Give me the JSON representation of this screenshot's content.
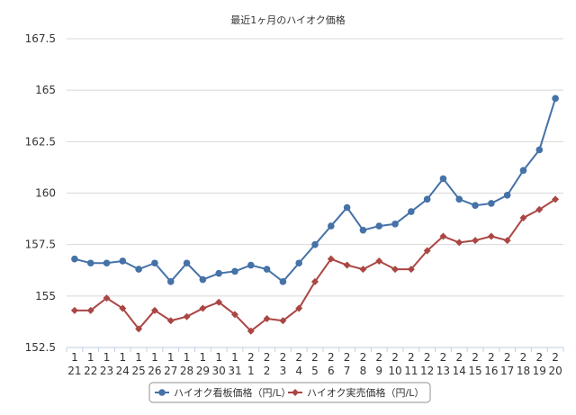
{
  "chart_data": {
    "type": "line",
    "title": "最近1ヶ月のハイオク価格",
    "xlabel": "",
    "ylabel": "",
    "ylim": [
      152.5,
      167.5
    ],
    "yticks": [
      "152.5",
      "155",
      "157.5",
      "160",
      "162.5",
      "165",
      "167.5"
    ],
    "grid": true,
    "legend_position": "bottom",
    "categories": [
      {
        "month": "1",
        "day": "21"
      },
      {
        "month": "1",
        "day": "22"
      },
      {
        "month": "1",
        "day": "23"
      },
      {
        "month": "1",
        "day": "24"
      },
      {
        "month": "1",
        "day": "25"
      },
      {
        "month": "1",
        "day": "26"
      },
      {
        "month": "1",
        "day": "27"
      },
      {
        "month": "1",
        "day": "28"
      },
      {
        "month": "1",
        "day": "29"
      },
      {
        "month": "1",
        "day": "30"
      },
      {
        "month": "1",
        "day": "31"
      },
      {
        "month": "2",
        "day": "1"
      },
      {
        "month": "2",
        "day": "2"
      },
      {
        "month": "2",
        "day": "3"
      },
      {
        "month": "2",
        "day": "4"
      },
      {
        "month": "2",
        "day": "5"
      },
      {
        "month": "2",
        "day": "6"
      },
      {
        "month": "2",
        "day": "7"
      },
      {
        "month": "2",
        "day": "8"
      },
      {
        "month": "2",
        "day": "9"
      },
      {
        "month": "2",
        "day": "10"
      },
      {
        "month": "2",
        "day": "11"
      },
      {
        "month": "2",
        "day": "12"
      },
      {
        "month": "2",
        "day": "13"
      },
      {
        "month": "2",
        "day": "14"
      },
      {
        "month": "2",
        "day": "15"
      },
      {
        "month": "2",
        "day": "16"
      },
      {
        "month": "2",
        "day": "17"
      },
      {
        "month": "2",
        "day": "18"
      },
      {
        "month": "2",
        "day": "19"
      },
      {
        "month": "2",
        "day": "20"
      }
    ],
    "series": [
      {
        "name": "ハイオク看板価格（円/L）",
        "color": "#4572A7",
        "marker": "circle",
        "values": [
          156.8,
          156.6,
          156.6,
          156.7,
          156.3,
          156.6,
          155.7,
          156.6,
          155.8,
          156.1,
          156.2,
          156.5,
          156.3,
          155.7,
          156.6,
          157.5,
          158.4,
          159.3,
          158.2,
          158.4,
          158.5,
          159.1,
          159.7,
          160.7,
          159.7,
          159.4,
          159.5,
          159.9,
          161.1,
          162.1,
          164.6
        ]
      },
      {
        "name": "ハイオク実売価格（円/L）",
        "color": "#AA4643",
        "marker": "diamond",
        "values": [
          154.3,
          154.3,
          154.9,
          154.4,
          153.4,
          154.3,
          153.8,
          154.0,
          154.4,
          154.7,
          154.1,
          153.3,
          153.9,
          153.8,
          154.4,
          155.7,
          156.8,
          156.5,
          156.3,
          156.7,
          156.3,
          156.3,
          157.2,
          157.9,
          157.6,
          157.7,
          157.9,
          157.7,
          158.8,
          159.2,
          159.7
        ]
      }
    ]
  }
}
